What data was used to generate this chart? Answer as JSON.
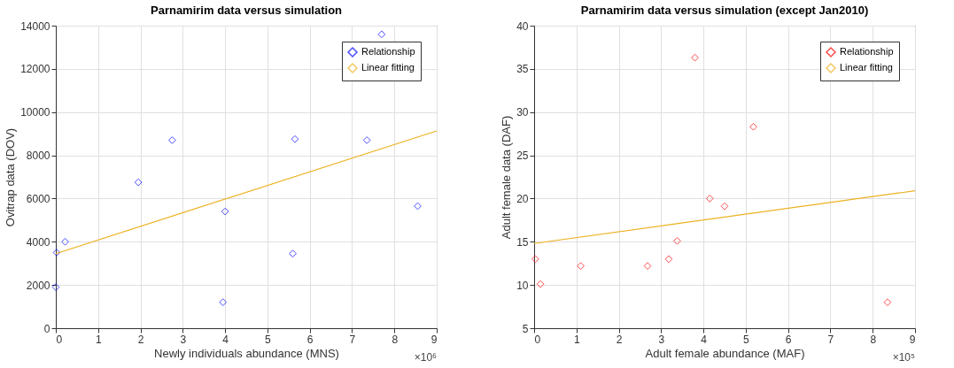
{
  "chart_data": [
    {
      "type": "scatter",
      "title": "Parnamirim data versus simulation",
      "xlabel": "Newly individuals abundance (MNS)",
      "ylabel": "Ovitrap data (DOV)",
      "annotations": [
        "×10⁶"
      ],
      "xlim": [
        0,
        9
      ],
      "xticks": [
        0,
        1,
        2,
        3,
        4,
        5,
        6,
        7,
        8,
        9
      ],
      "ylim": [
        0,
        14000
      ],
      "yticks": [
        0,
        2000,
        4000,
        6000,
        8000,
        10000,
        12000,
        14000
      ],
      "grid": true,
      "legend": "top right",
      "series": [
        {
          "name": "Relationship",
          "color": "#0000ff",
          "marker": "diamond",
          "x": [
            0.02,
            0.0,
            0.22,
            1.95,
            2.75,
            3.95,
            4.0,
            5.6,
            5.65,
            7.35,
            7.7,
            8.55
          ],
          "values": [
            3500,
            1900,
            4000,
            6750,
            8700,
            1200,
            5400,
            3450,
            8750,
            8700,
            13600,
            5650
          ]
        },
        {
          "name": "Linear fitting",
          "type": "line",
          "color": "#edb120",
          "x": [
            0,
            9
          ],
          "values": [
            3450,
            9130
          ]
        }
      ]
    },
    {
      "type": "scatter",
      "title": "Parnamirim data versus simulation (except Jan2010)",
      "xlabel": "Adult female abundance (MAF)",
      "ylabel": "Adult female data (DAF)",
      "annotations": [
        "×10⁵"
      ],
      "xlim": [
        0,
        9
      ],
      "xticks": [
        0,
        1,
        2,
        3,
        4,
        5,
        6,
        7,
        8,
        9
      ],
      "ylim": [
        5,
        40
      ],
      "yticks": [
        5,
        10,
        15,
        20,
        25,
        30,
        35,
        40
      ],
      "grid": true,
      "legend": "top right",
      "series": [
        {
          "name": "Relationship",
          "color": "#ff0000",
          "marker": "diamond",
          "x": [
            0.03,
            0.15,
            1.1,
            2.68,
            3.18,
            3.38,
            3.8,
            4.15,
            4.5,
            5.18,
            8.35
          ],
          "values": [
            13,
            10.1,
            12.2,
            12.2,
            13,
            15.1,
            36.3,
            20,
            19.1,
            28.3,
            8
          ]
        },
        {
          "name": "Linear fitting",
          "type": "line",
          "color": "#edb120",
          "x": [
            0,
            9
          ],
          "values": [
            14.8,
            20.9
          ]
        }
      ]
    }
  ]
}
